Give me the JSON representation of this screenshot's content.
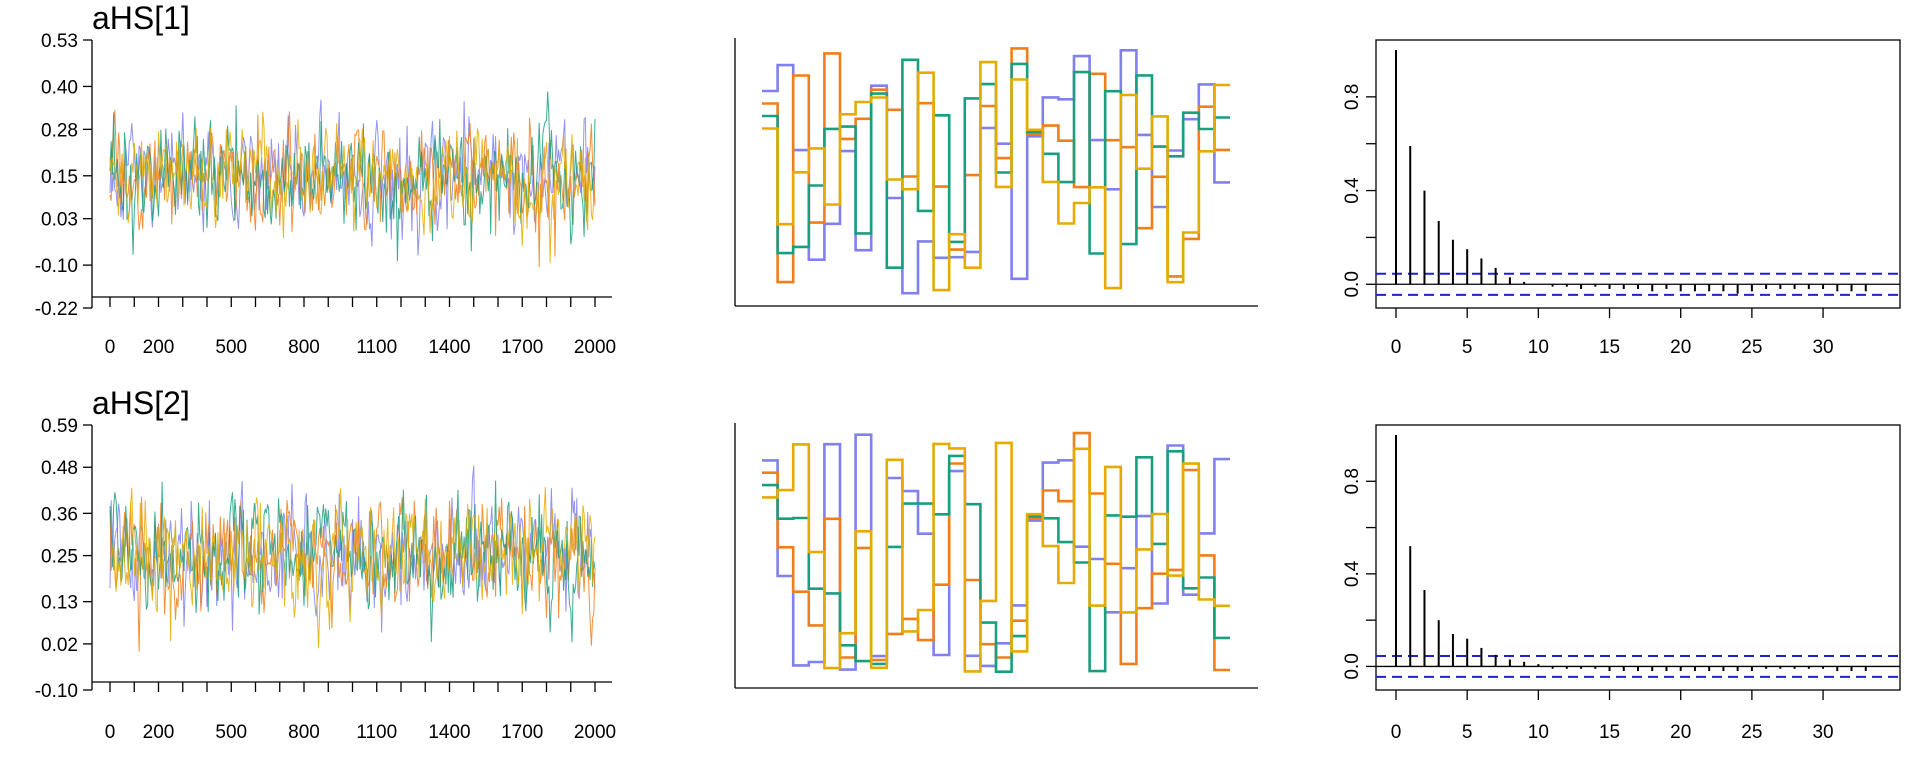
{
  "chart_data": [
    {
      "type": "line",
      "subtype": "trace",
      "title": "aHS[1]",
      "x_ticks": [
        0,
        100,
        200,
        300,
        400,
        500,
        600,
        700,
        800,
        900,
        1000,
        1100,
        1200,
        1300,
        1400,
        1500,
        1600,
        1700,
        1800,
        1900,
        2000
      ],
      "x_tick_labels": [
        "0",
        "200",
        "500",
        "800",
        "1100",
        "1400",
        "1700",
        "2000"
      ],
      "x_tick_label_values": [
        0,
        200,
        500,
        800,
        1100,
        1400,
        1700,
        2000
      ],
      "xlim": [
        0,
        2000
      ],
      "y_ticks": [
        -0.22,
        -0.1,
        0.03,
        0.15,
        0.28,
        0.4,
        0.53
      ],
      "y_tick_labels": [
        "-0.22",
        "-0.10",
        "0.03",
        "0.15",
        "0.28",
        "0.40",
        "0.53"
      ],
      "ylim": [
        -0.22,
        0.53
      ],
      "center": 0.15,
      "sd": 0.075,
      "series": [
        {
          "chain": 1,
          "color": "#8080f0"
        },
        {
          "chain": 2,
          "color": "#f07f1a"
        },
        {
          "chain": 3,
          "color": "#1a9e80"
        },
        {
          "chain": 4,
          "color": "#e5ab00"
        }
      ]
    },
    {
      "type": "line",
      "subtype": "trank",
      "series": [
        {
          "chain": 1,
          "color": "#8080f0"
        },
        {
          "chain": 2,
          "color": "#f07f1a"
        },
        {
          "chain": 3,
          "color": "#1a9e80"
        },
        {
          "chain": 4,
          "color": "#e5ab00"
        }
      ]
    },
    {
      "type": "bar",
      "subtype": "autocorrelation",
      "x_tick_labels": [
        "0",
        "5",
        "10",
        "15",
        "20",
        "25",
        "30"
      ],
      "x_tick_values": [
        0,
        5,
        10,
        15,
        20,
        25,
        30
      ],
      "xlim": [
        0,
        34
      ],
      "y_tick_labels": [
        "0.0",
        "0.4",
        "0.8"
      ],
      "y_tick_values": [
        0.0,
        0.4,
        0.8
      ],
      "ylim": [
        -0.05,
        1.0
      ],
      "lags": [
        0,
        1,
        2,
        3,
        4,
        5,
        6,
        7,
        8,
        9,
        10,
        11,
        12,
        13,
        14,
        15,
        16,
        17,
        18,
        19,
        20,
        21,
        22,
        23,
        24,
        25,
        26,
        27,
        28,
        29,
        30,
        31,
        32,
        33
      ],
      "values": [
        1.0,
        0.59,
        0.4,
        0.27,
        0.19,
        0.15,
        0.11,
        0.07,
        0.03,
        0.01,
        0.0,
        -0.01,
        -0.01,
        -0.02,
        -0.01,
        -0.02,
        -0.02,
        -0.02,
        -0.03,
        -0.02,
        -0.03,
        -0.03,
        -0.03,
        -0.03,
        -0.04,
        -0.03,
        -0.02,
        -0.02,
        -0.02,
        -0.02,
        -0.02,
        -0.03,
        -0.03,
        -0.03
      ],
      "ci": [
        0.045,
        -0.045
      ],
      "ci_color": "#2020d0"
    },
    {
      "type": "line",
      "subtype": "trace",
      "title": "aHS[2]",
      "x_ticks": [
        0,
        100,
        200,
        300,
        400,
        500,
        600,
        700,
        800,
        900,
        1000,
        1100,
        1200,
        1300,
        1400,
        1500,
        1600,
        1700,
        1800,
        1900,
        2000
      ],
      "x_tick_labels": [
        "0",
        "200",
        "500",
        "800",
        "1100",
        "1400",
        "1700",
        "2000"
      ],
      "x_tick_label_values": [
        0,
        200,
        500,
        800,
        1100,
        1400,
        1700,
        2000
      ],
      "xlim": [
        0,
        2000
      ],
      "y_ticks": [
        -0.1,
        0.02,
        0.13,
        0.25,
        0.36,
        0.48,
        0.59
      ],
      "y_tick_labels": [
        "-0.10",
        "0.02",
        "0.13",
        "0.25",
        "0.36",
        "0.48",
        "0.59"
      ],
      "ylim": [
        -0.1,
        0.59
      ],
      "center": 0.25,
      "sd": 0.075,
      "series": [
        {
          "chain": 1,
          "color": "#8080f0"
        },
        {
          "chain": 2,
          "color": "#f07f1a"
        },
        {
          "chain": 3,
          "color": "#1a9e80"
        },
        {
          "chain": 4,
          "color": "#e5ab00"
        }
      ]
    },
    {
      "type": "line",
      "subtype": "trank",
      "series": [
        {
          "chain": 1,
          "color": "#8080f0"
        },
        {
          "chain": 2,
          "color": "#f07f1a"
        },
        {
          "chain": 3,
          "color": "#1a9e80"
        },
        {
          "chain": 4,
          "color": "#e5ab00"
        }
      ]
    },
    {
      "type": "bar",
      "subtype": "autocorrelation",
      "x_tick_labels": [
        "0",
        "5",
        "10",
        "15",
        "20",
        "25",
        "30"
      ],
      "x_tick_values": [
        0,
        5,
        10,
        15,
        20,
        25,
        30
      ],
      "xlim": [
        0,
        34
      ],
      "y_tick_labels": [
        "0.0",
        "0.4",
        "0.8"
      ],
      "y_tick_values": [
        0.0,
        0.4,
        0.8
      ],
      "ylim": [
        -0.05,
        1.0
      ],
      "lags": [
        0,
        1,
        2,
        3,
        4,
        5,
        6,
        7,
        8,
        9,
        10,
        11,
        12,
        13,
        14,
        15,
        16,
        17,
        18,
        19,
        20,
        21,
        22,
        23,
        24,
        25,
        26,
        27,
        28,
        29,
        30,
        31,
        32,
        33
      ],
      "values": [
        1.0,
        0.52,
        0.33,
        0.2,
        0.14,
        0.12,
        0.08,
        0.05,
        0.03,
        0.02,
        0.01,
        -0.01,
        -0.01,
        -0.01,
        -0.01,
        -0.02,
        -0.02,
        -0.02,
        -0.02,
        -0.02,
        -0.02,
        -0.02,
        -0.02,
        -0.02,
        -0.02,
        -0.02,
        -0.01,
        -0.01,
        -0.01,
        -0.01,
        -0.01,
        -0.02,
        -0.02,
        -0.02
      ],
      "ci": [
        0.045,
        -0.045
      ],
      "ci_color": "#2020d0"
    }
  ]
}
